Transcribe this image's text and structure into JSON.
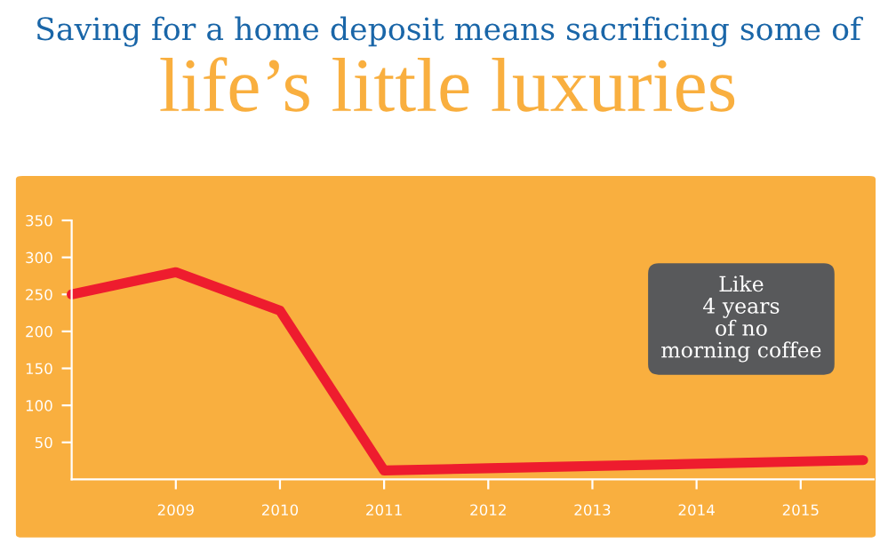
{
  "chart_data": {
    "type": "line",
    "title": "Saving for a home deposit means sacrificing some of",
    "subtitle": "life’s little luxuries",
    "x": [
      2008,
      2009,
      2010,
      2011,
      2012,
      2013,
      2014,
      2015.6
    ],
    "series": [
      {
        "color": "#ee1c2e",
        "values": [
          250,
          280,
          228,
          12,
          15,
          18,
          21,
          26
        ]
      }
    ],
    "xlim": [
      2008,
      2015.7
    ],
    "xticks": [
      2009,
      2010,
      2011,
      2012,
      2013,
      2014,
      2015
    ],
    "ylim": [
      0,
      350
    ],
    "yticks": [
      50,
      100,
      150,
      200,
      250,
      300,
      350
    ],
    "annotations": [
      "Like\n4 years\nof no\nmorning coffee"
    ],
    "grid": false,
    "legend": false,
    "marker": "none",
    "line_style": "solid"
  }
}
